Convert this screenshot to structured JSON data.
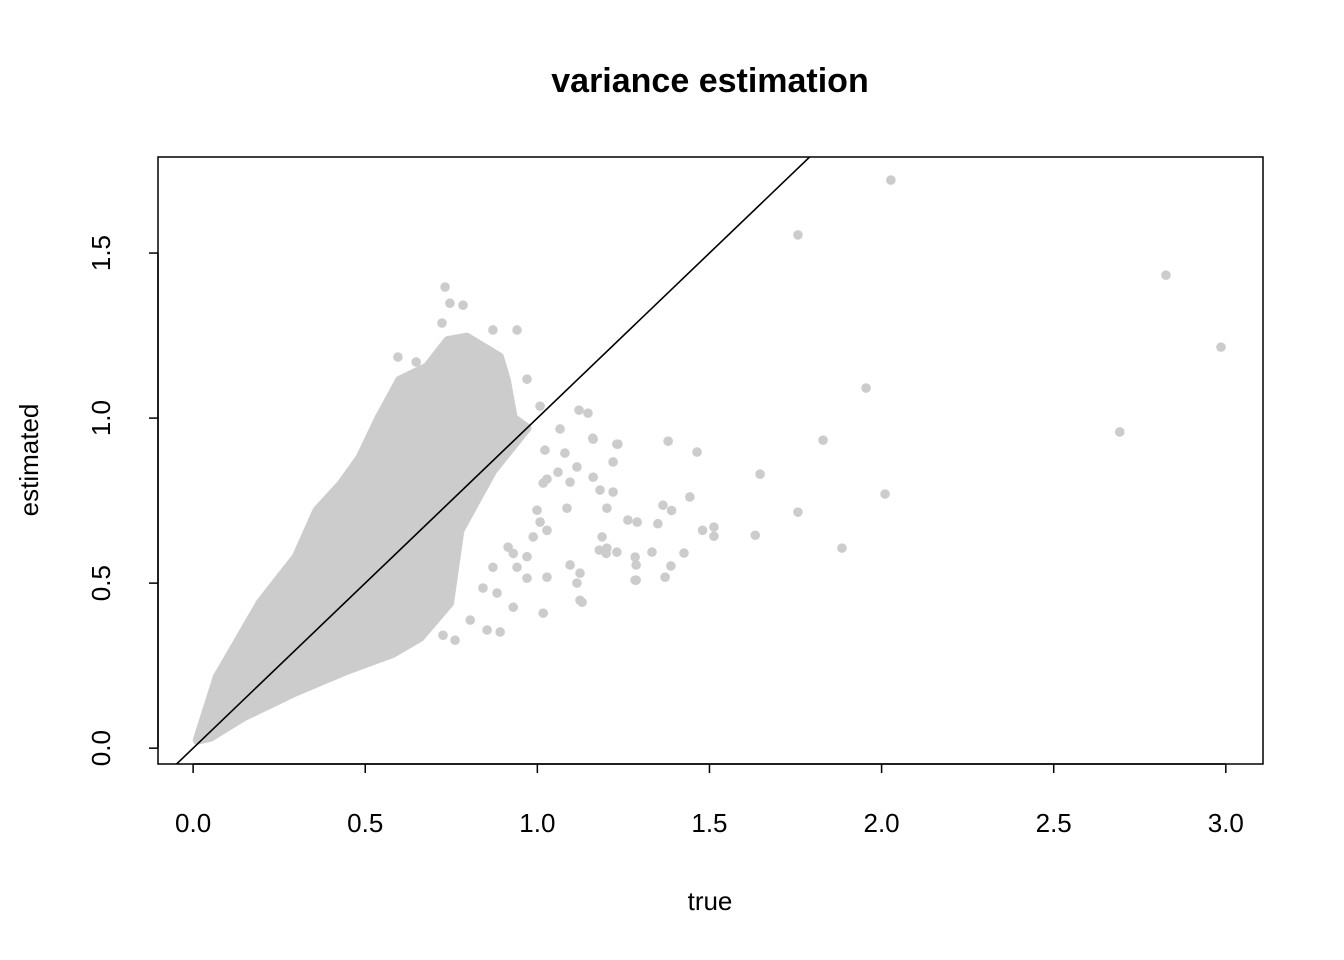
{
  "chart_data": {
    "type": "scatter",
    "title": "variance estimation",
    "xlabel": "true",
    "ylabel": "estimated",
    "xlim": [
      -0.102,
      3.108
    ],
    "ylim": [
      -0.048,
      1.791
    ],
    "xticks": [
      "0.0",
      "0.5",
      "1.0",
      "1.5",
      "2.0",
      "2.5",
      "3.0"
    ],
    "yticks": [
      "0.0",
      "0.5",
      "1.0",
      "1.5"
    ],
    "grid": false,
    "legend": "none",
    "point_color": "#cccccc",
    "reference_line": {
      "intercept": 0,
      "slope": 1,
      "color": "#000000"
    },
    "dense_region": [
      [
        0.012,
        0.024
      ],
      [
        0.07,
        0.215
      ],
      [
        0.195,
        0.44
      ],
      [
        0.3,
        0.58
      ],
      [
        0.36,
        0.72
      ],
      [
        0.43,
        0.8
      ],
      [
        0.485,
        0.88
      ],
      [
        0.54,
        1.0
      ],
      [
        0.6,
        1.115
      ],
      [
        0.68,
        1.155
      ],
      [
        0.74,
        1.235
      ],
      [
        0.795,
        1.245
      ],
      [
        0.89,
        1.185
      ],
      [
        0.91,
        1.115
      ],
      [
        0.93,
        1.0
      ],
      [
        0.97,
        0.97
      ],
      [
        0.87,
        0.84
      ],
      [
        0.775,
        0.66
      ],
      [
        0.745,
        0.44
      ],
      [
        0.66,
        0.336
      ],
      [
        0.58,
        0.287
      ],
      [
        0.447,
        0.236
      ],
      [
        0.29,
        0.167
      ],
      [
        0.145,
        0.094
      ],
      [
        0.05,
        0.033
      ]
    ],
    "points": [
      [
        0.732,
        1.397
      ],
      [
        0.746,
        1.348
      ],
      [
        0.784,
        1.342
      ],
      [
        0.723,
        1.288
      ],
      [
        0.941,
        1.267
      ],
      [
        0.871,
        1.267
      ],
      [
        0.595,
        1.185
      ],
      [
        0.648,
        1.17
      ],
      [
        0.97,
        1.118
      ],
      [
        0.59,
        1.07
      ],
      [
        1.008,
        1.036
      ],
      [
        1.121,
        1.024
      ],
      [
        1.147,
        1.015
      ],
      [
        1.066,
        0.967
      ],
      [
        1.162,
        0.936
      ],
      [
        1.231,
        0.921
      ],
      [
        1.022,
        0.903
      ],
      [
        1.08,
        0.894
      ],
      [
        1.115,
        0.852
      ],
      [
        1.22,
        0.867
      ],
      [
        1.162,
        0.821
      ],
      [
        1.028,
        0.815
      ],
      [
        1.06,
        0.836
      ],
      [
        1.095,
        0.806
      ],
      [
        1.22,
        0.776
      ],
      [
        1.182,
        0.782
      ],
      [
        1.086,
        0.727
      ],
      [
        1.202,
        0.727
      ],
      [
        1.008,
        0.685
      ],
      [
        1.263,
        0.691
      ],
      [
        1.188,
        0.64
      ],
      [
        1.202,
        0.606
      ],
      [
        1.231,
        0.594
      ],
      [
        1.095,
        0.555
      ],
      [
        1.284,
        0.579
      ],
      [
        1.124,
        0.53
      ],
      [
        1.284,
        0.509
      ],
      [
        1.028,
        0.518
      ],
      [
        1.115,
        0.5
      ],
      [
        1.13,
        0.442
      ],
      [
        1.017,
        0.409
      ],
      [
        0.97,
        0.515
      ],
      [
        0.93,
        0.427
      ],
      [
        0.892,
        0.352
      ],
      [
        0.854,
        0.358
      ],
      [
        0.805,
        0.388
      ],
      [
        0.761,
        0.327
      ],
      [
        0.726,
        0.342
      ],
      [
        0.93,
        0.59
      ],
      [
        0.97,
        0.58
      ],
      [
        0.941,
        0.548
      ],
      [
        0.988,
        0.64
      ],
      [
        1.028,
        0.66
      ],
      [
        0.915,
        0.609
      ],
      [
        0.871,
        0.548
      ],
      [
        0.842,
        0.485
      ],
      [
        0.883,
        0.47
      ],
      [
        1.017,
        0.803
      ],
      [
        0.999,
        0.721
      ],
      [
        2.027,
        1.721
      ],
      [
        1.757,
        1.555
      ],
      [
        2.826,
        1.433
      ],
      [
        2.986,
        1.215
      ],
      [
        1.955,
        1.091
      ],
      [
        2.692,
        0.958
      ],
      [
        1.83,
        0.933
      ],
      [
        2.01,
        0.77
      ],
      [
        1.885,
        0.606
      ],
      [
        1.757,
        0.715
      ],
      [
        1.647,
        0.83
      ],
      [
        1.633,
        0.645
      ],
      [
        1.464,
        0.897
      ],
      [
        1.38,
        0.93
      ],
      [
        1.443,
        0.761
      ],
      [
        1.513,
        0.67
      ],
      [
        1.513,
        0.642
      ],
      [
        1.48,
        0.66
      ],
      [
        1.426,
        0.591
      ],
      [
        1.388,
        0.552
      ],
      [
        1.371,
        0.518
      ],
      [
        1.333,
        0.594
      ],
      [
        1.287,
        0.509
      ],
      [
        1.287,
        0.555
      ],
      [
        1.29,
        0.685
      ],
      [
        1.365,
        0.736
      ],
      [
        1.35,
        0.68
      ],
      [
        1.39,
        0.72
      ],
      [
        1.234,
        0.921
      ],
      [
        1.161,
        0.939
      ],
      [
        1.124,
        0.448
      ],
      [
        1.18,
        0.6
      ],
      [
        1.2,
        0.59
      ]
    ]
  }
}
